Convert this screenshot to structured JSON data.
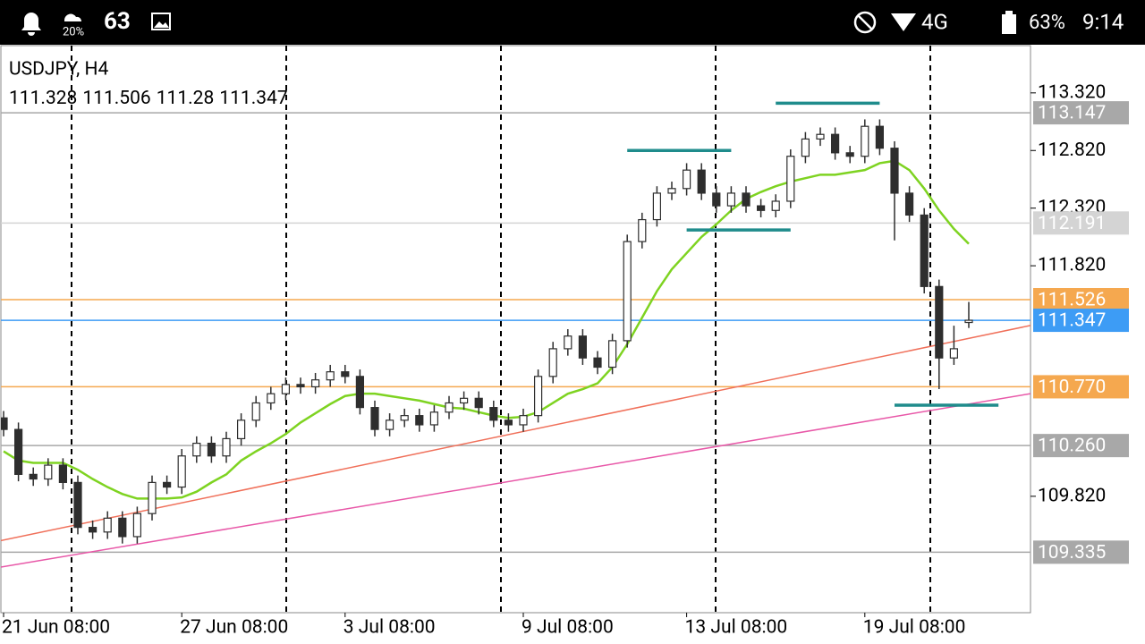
{
  "status_bar": {
    "weather": "20%",
    "notification": "63",
    "network": "4G",
    "battery": "63%",
    "time": "9:14"
  },
  "chart_data": {
    "type": "candlestick",
    "title": "USDJPY, H4",
    "categories": [
      "21 Jun 08:00",
      null,
      null,
      null,
      null,
      null,
      null,
      null,
      null,
      null,
      null,
      null,
      "27 Jun 08:00",
      null,
      null,
      null,
      null,
      null,
      null,
      null,
      null,
      null,
      null,
      "3 Jul 08:00",
      null,
      null,
      null,
      null,
      null,
      null,
      null,
      null,
      null,
      null,
      null,
      "9 Jul 08:00",
      null,
      null,
      null,
      null,
      null,
      null,
      null,
      null,
      null,
      null,
      "13 Jul 08:00",
      null,
      null,
      null,
      null,
      null,
      null,
      null,
      null,
      null,
      null,
      null,
      "19 Jul 08:00",
      null,
      null,
      null,
      null,
      null,
      null,
      null
    ],
    "open": [
      110.5,
      110.4,
      110.01,
      109.97,
      110.09,
      109.94,
      109.55,
      109.51,
      109.63,
      109.47,
      109.67,
      109.94,
      109.9,
      110.17,
      110.28,
      110.17,
      110.32,
      110.48,
      110.63,
      110.71,
      110.79,
      110.77,
      110.83,
      110.9,
      110.86,
      110.59,
      110.4,
      110.48,
      110.52,
      110.44,
      110.55,
      110.63,
      110.67,
      110.59,
      110.48,
      110.44,
      110.52,
      110.86,
      111.1,
      111.21,
      111.02,
      110.94,
      111.17,
      112.03,
      112.22,
      112.45,
      112.49,
      112.65,
      112.45,
      112.34,
      112.45,
      112.34,
      112.3,
      112.38,
      112.77,
      112.92,
      112.96,
      112.8,
      112.77,
      113.03,
      112.84,
      112.45,
      112.26,
      111.64,
      111.02,
      111.328
    ],
    "high": [
      110.56,
      110.46,
      110.07,
      110.15,
      110.15,
      110.0,
      109.61,
      109.69,
      109.69,
      109.73,
      110.0,
      110.0,
      110.23,
      110.34,
      110.34,
      110.38,
      110.54,
      110.69,
      110.77,
      110.85,
      110.85,
      110.89,
      110.96,
      110.96,
      110.92,
      110.65,
      110.54,
      110.58,
      110.58,
      110.61,
      110.69,
      110.73,
      110.73,
      110.65,
      110.54,
      110.58,
      110.92,
      111.16,
      111.27,
      111.27,
      111.08,
      111.23,
      112.09,
      112.28,
      112.51,
      112.55,
      112.71,
      112.71,
      112.51,
      112.51,
      112.51,
      112.4,
      112.44,
      112.83,
      112.98,
      113.02,
      113.02,
      112.86,
      113.09,
      113.09,
      112.9,
      112.51,
      112.32,
      111.7,
      111.3,
      111.506
    ],
    "low": [
      110.34,
      109.95,
      109.91,
      109.91,
      109.88,
      109.49,
      109.45,
      109.45,
      109.41,
      109.41,
      109.61,
      109.84,
      109.84,
      110.11,
      110.11,
      110.11,
      110.26,
      110.42,
      110.57,
      110.65,
      110.71,
      110.71,
      110.77,
      110.8,
      110.53,
      110.34,
      110.34,
      110.42,
      110.38,
      110.38,
      110.49,
      110.57,
      110.53,
      110.42,
      110.38,
      110.38,
      110.46,
      110.8,
      111.04,
      110.96,
      110.88,
      110.88,
      111.11,
      111.97,
      112.16,
      112.39,
      112.43,
      112.39,
      112.28,
      112.28,
      112.28,
      112.24,
      112.24,
      112.32,
      112.71,
      112.86,
      112.74,
      112.71,
      112.71,
      112.78,
      112.04,
      112.2,
      111.58,
      110.75,
      110.96,
      111.28
    ],
    "close": [
      110.4,
      110.01,
      109.97,
      110.09,
      109.94,
      109.55,
      109.51,
      109.63,
      109.47,
      109.67,
      109.94,
      109.9,
      110.17,
      110.28,
      110.17,
      110.32,
      110.48,
      110.63,
      110.71,
      110.79,
      110.77,
      110.83,
      110.9,
      110.86,
      110.59,
      110.4,
      110.48,
      110.52,
      110.44,
      110.55,
      110.63,
      110.67,
      110.59,
      110.48,
      110.44,
      110.52,
      110.86,
      111.1,
      111.21,
      111.02,
      110.94,
      111.17,
      112.03,
      112.22,
      112.45,
      112.49,
      112.65,
      112.45,
      112.34,
      112.45,
      112.34,
      112.3,
      112.38,
      112.77,
      112.92,
      112.96,
      112.8,
      112.77,
      113.03,
      112.84,
      112.45,
      112.26,
      111.64,
      111.02,
      111.1,
      111.347
    ],
    "candle_color": "#2e2e2e",
    "ma": {
      "color": "#7ed321",
      "values": [
        110.21,
        110.13,
        110.11,
        110.11,
        110.11,
        110.05,
        109.97,
        109.9,
        109.84,
        109.8,
        109.8,
        109.8,
        109.81,
        109.86,
        109.94,
        110.01,
        110.13,
        110.21,
        110.28,
        110.36,
        110.46,
        110.54,
        110.62,
        110.69,
        110.71,
        110.71,
        110.69,
        110.67,
        110.65,
        110.62,
        110.59,
        110.58,
        110.55,
        110.52,
        110.5,
        110.51,
        110.55,
        110.63,
        110.71,
        110.75,
        110.8,
        110.94,
        111.14,
        111.37,
        111.6,
        111.79,
        111.93,
        112.07,
        112.18,
        112.3,
        112.4,
        112.46,
        112.51,
        112.55,
        112.58,
        112.61,
        112.61,
        112.63,
        112.65,
        112.71,
        112.73,
        112.65,
        112.49,
        112.3,
        112.14,
        112.01
      ]
    },
    "levels": [
      {
        "value": 113.147,
        "color": "#a8a8a8"
      },
      {
        "value": 112.191,
        "color": "#d4d4d4"
      },
      {
        "value": 111.526,
        "color": "#f5a84f"
      },
      {
        "value": 111.347,
        "color": "#3d9cf5"
      },
      {
        "value": 110.77,
        "label": "110.770",
        "color": "#f5a84f"
      },
      {
        "value": 110.26,
        "label": "110.260",
        "color": "#a8a8a8"
      },
      {
        "value": 109.335,
        "color": "#a8a8a8"
      }
    ],
    "trendlines": [
      {
        "color": "#f0705a",
        "points": [
          [
            0,
            109.44
          ],
          [
            65,
            111.19
          ]
        ]
      },
      {
        "color": "#e858a8",
        "points": [
          [
            0,
            109.21
          ],
          [
            65,
            110.62
          ]
        ]
      }
    ],
    "segments": [
      {
        "color": "#1f8c8c",
        "price": 112.82,
        "from": 42,
        "to": 49
      },
      {
        "color": "#1f8c8c",
        "price": 113.23,
        "from": 52,
        "to": 59
      },
      {
        "color": "#1f8c8c",
        "price": 112.13,
        "from": 46,
        "to": 53
      },
      {
        "color": "#1f8c8c",
        "price": 110.61,
        "from": 60,
        "to": 67
      }
    ],
    "ylim": [
      108.81,
      113.73
    ],
    "yticks": [
      {
        "value": 113.32,
        "label": "113.320"
      },
      {
        "value": 112.82,
        "label": "112.820"
      },
      {
        "value": 112.32,
        "label": "112.320"
      },
      {
        "value": 111.82,
        "label": "111.820"
      },
      {
        "value": 109.82,
        "label": "109.820"
      }
    ]
  }
}
